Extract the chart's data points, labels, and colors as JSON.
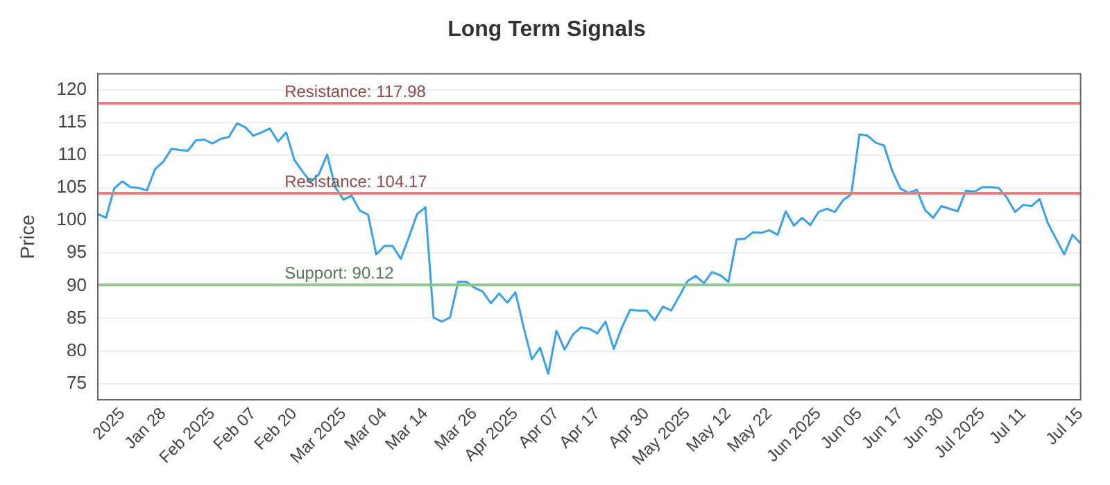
{
  "chart_data": {
    "type": "line",
    "title": "Long Term Signals",
    "ylabel": "Price",
    "categories": [
      null,
      null,
      null,
      "2025",
      null,
      null,
      null,
      null,
      "Jan 28",
      null,
      null,
      null,
      null,
      null,
      "Feb 2025",
      null,
      null,
      null,
      null,
      "Feb 07",
      null,
      null,
      null,
      null,
      "Feb 20",
      null,
      null,
      null,
      null,
      null,
      "Mar 2025",
      null,
      null,
      null,
      null,
      "Mar 04",
      null,
      null,
      null,
      null,
      "Mar 14",
      null,
      null,
      null,
      null,
      null,
      "Mar 26",
      null,
      null,
      null,
      null,
      "Apr 2025",
      null,
      null,
      null,
      null,
      "Apr 07",
      null,
      null,
      null,
      null,
      "Apr 17",
      null,
      null,
      null,
      null,
      null,
      "Apr 30",
      null,
      null,
      null,
      null,
      "May 2025",
      null,
      null,
      null,
      null,
      "May 12",
      null,
      null,
      null,
      null,
      "May 22",
      null,
      null,
      null,
      null,
      null,
      "Jun 2025",
      null,
      null,
      null,
      null,
      "Jun 05",
      null,
      null,
      null,
      null,
      "Jun 17",
      null,
      null,
      null,
      null,
      "Jun 30",
      null,
      null,
      null,
      null,
      "Jul 2025",
      null,
      null,
      null,
      null,
      "Jul 11",
      null,
      null,
      null,
      null,
      null,
      null,
      "Jul 15"
    ],
    "series": [
      {
        "color": "#3aa0e8",
        "values": [
          101.0,
          100.4,
          104.9,
          106.0,
          105.1,
          105.0,
          104.6,
          107.9,
          109.0,
          111.0,
          110.8,
          110.7,
          112.3,
          112.4,
          111.8,
          112.5,
          112.8,
          114.9,
          114.3,
          113.0,
          113.5,
          114.1,
          112.1,
          113.5,
          109.3,
          107.5,
          105.9,
          107.1,
          110.1,
          105.1,
          103.2,
          103.8,
          101.5,
          100.9,
          94.8,
          96.1,
          96.1,
          94.1,
          97.5,
          101.0,
          102.0,
          85.1,
          84.5,
          85.1,
          90.6,
          90.6,
          89.7,
          89.1,
          87.3,
          88.8,
          87.4,
          89.0,
          83.6,
          78.7,
          80.5,
          76.5,
          83.1,
          80.2,
          82.5,
          83.6,
          83.4,
          82.7,
          84.5,
          80.3,
          83.6,
          86.3,
          86.2,
          86.2,
          84.7,
          86.8,
          86.2,
          88.4,
          90.7,
          91.5,
          90.4,
          92.1,
          91.6,
          90.6,
          97.1,
          97.2,
          98.2,
          98.1,
          98.5,
          97.8,
          101.4,
          99.2,
          100.4,
          99.3,
          101.3,
          101.8,
          101.3,
          103.1,
          104.0,
          113.2,
          113.0,
          111.9,
          111.5,
          107.6,
          104.9,
          104.2,
          104.7,
          101.6,
          100.4,
          102.2,
          101.8,
          101.4,
          104.6,
          104.4,
          105.1,
          105.1,
          105.0,
          103.5,
          101.3,
          102.4,
          102.2,
          103.3,
          99.6,
          97.2,
          94.8,
          97.8,
          96.5
        ]
      }
    ],
    "ylim": [
      72.5,
      122.5
    ],
    "yticks": [
      75,
      80,
      85,
      90,
      95,
      100,
      105,
      110,
      115,
      120
    ],
    "grid": "y",
    "legend": false,
    "marker": "none",
    "line_style": "solid",
    "ref_lines": [
      {
        "axis": "y",
        "value": 117.98,
        "label": "Resistance: 117.98",
        "color": "#e88080"
      },
      {
        "axis": "y",
        "value": 104.17,
        "label": "Resistance: 104.17",
        "color": "#e88080"
      },
      {
        "axis": "y",
        "value": 90.12,
        "label": "Support: 90.12",
        "color": "#8cc88c"
      }
    ]
  }
}
